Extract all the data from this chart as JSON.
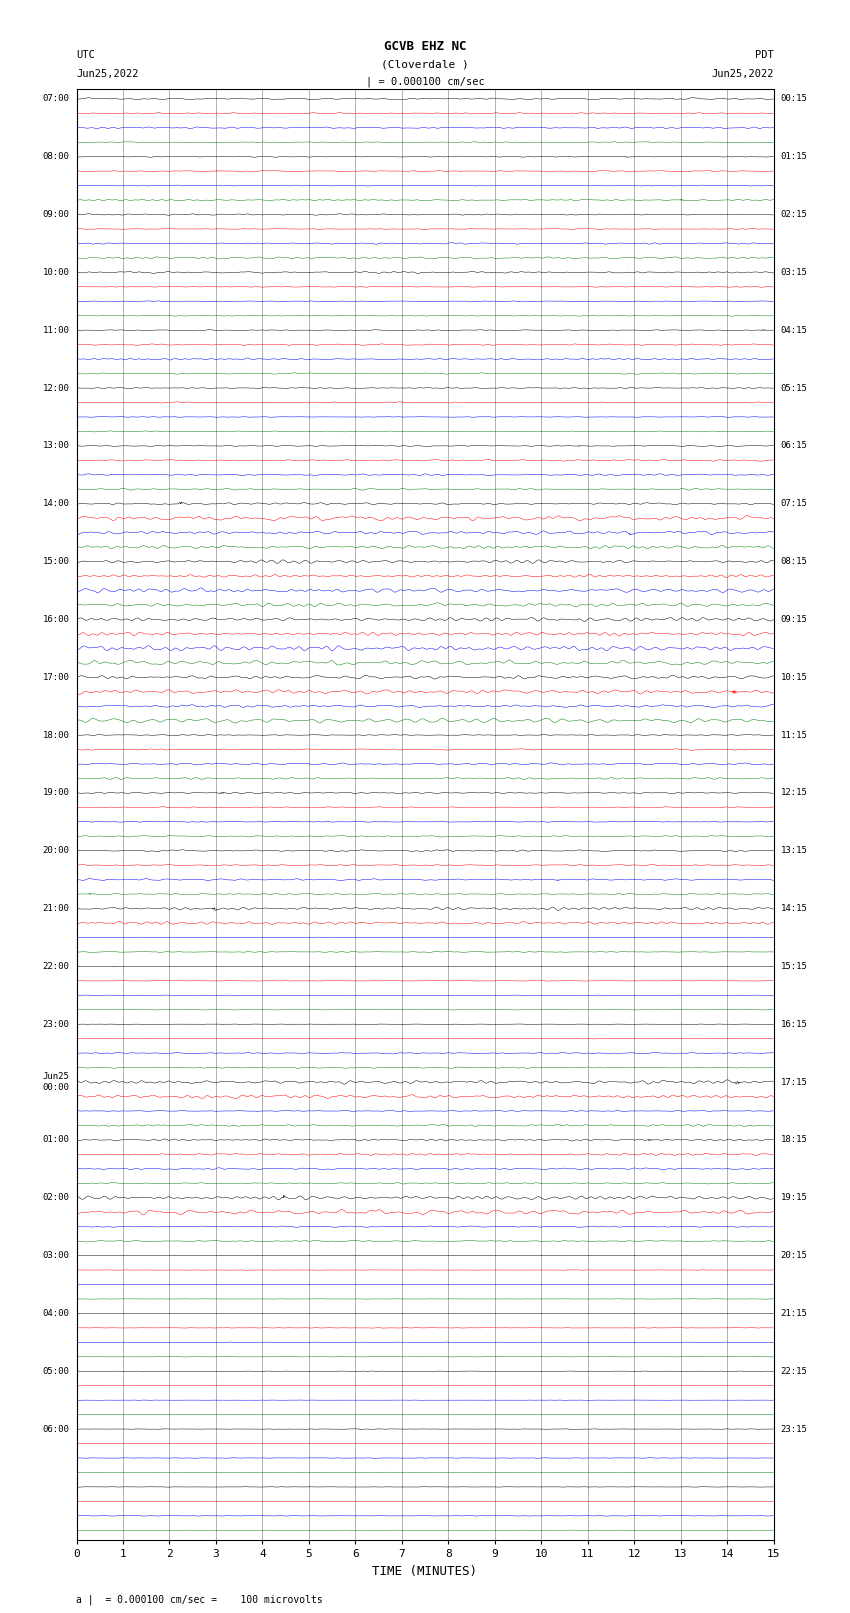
{
  "title_line1": "GCVB EHZ NC",
  "title_line2": "(Cloverdale )",
  "scale_label": "| = 0.000100 cm/sec",
  "utc_label": "UTC\nJun25,2022",
  "pdt_label": "PDT\nJun25,2022",
  "bottom_label": "a |  = 0.000100 cm/sec =    100 microvolts",
  "xlabel": "TIME (MINUTES)",
  "num_traces": 100,
  "x_min": 0,
  "x_max": 15,
  "x_ticks": [
    0,
    1,
    2,
    3,
    4,
    5,
    6,
    7,
    8,
    9,
    10,
    11,
    12,
    13,
    14,
    15
  ],
  "fig_width": 8.5,
  "fig_height": 16.13,
  "bg_color": "#ffffff",
  "trace_colors": [
    "black",
    "red",
    "blue",
    "green"
  ],
  "grid_color": "#888888",
  "left_label_utc_times": [
    "07:00",
    "",
    "",
    "",
    "08:00",
    "",
    "",
    "",
    "09:00",
    "",
    "",
    "",
    "10:00",
    "",
    "",
    "",
    "11:00",
    "",
    "",
    "",
    "12:00",
    "",
    "",
    "",
    "13:00",
    "",
    "",
    "",
    "14:00",
    "",
    "",
    "",
    "15:00",
    "",
    "",
    "",
    "16:00",
    "",
    "",
    "",
    "17:00",
    "",
    "",
    "",
    "18:00",
    "",
    "",
    "",
    "19:00",
    "",
    "",
    "",
    "20:00",
    "",
    "",
    "",
    "21:00",
    "",
    "",
    "",
    "22:00",
    "",
    "",
    "",
    "23:00",
    "",
    "",
    "",
    "Jun25\n00:00",
    "",
    "",
    "",
    "01:00",
    "",
    "",
    "",
    "02:00",
    "",
    "",
    "",
    "03:00",
    "",
    "",
    "",
    "04:00",
    "",
    "",
    "",
    "05:00",
    "",
    "",
    "",
    "06:00",
    "",
    ""
  ],
  "right_label_pdt_times": [
    "00:15",
    "",
    "",
    "",
    "01:15",
    "",
    "",
    "",
    "02:15",
    "",
    "",
    "",
    "03:15",
    "",
    "",
    "",
    "04:15",
    "",
    "",
    "",
    "05:15",
    "",
    "",
    "",
    "06:15",
    "",
    "",
    "",
    "07:15",
    "",
    "",
    "",
    "08:15",
    "",
    "",
    "",
    "09:15",
    "",
    "",
    "",
    "10:15",
    "",
    "",
    "",
    "11:15",
    "",
    "",
    "",
    "12:15",
    "",
    "",
    "",
    "13:15",
    "",
    "",
    "",
    "14:15",
    "",
    "",
    "",
    "15:15",
    "",
    "",
    "",
    "16:15",
    "",
    "",
    "",
    "17:15",
    "",
    "",
    "",
    "18:15",
    "",
    "",
    "",
    "19:15",
    "",
    "",
    "",
    "20:15",
    "",
    "",
    "",
    "21:15",
    "",
    "",
    "",
    "22:15",
    "",
    "",
    "",
    "23:15",
    "",
    ""
  ],
  "high_amplitude_traces": [
    28,
    29,
    30,
    31,
    32,
    33,
    34,
    35,
    36,
    37,
    38,
    39,
    40,
    41,
    42,
    43,
    56,
    57,
    68,
    69,
    76,
    77
  ],
  "flat_traces": [
    60,
    61,
    62,
    63,
    64,
    65,
    80,
    81,
    82,
    83,
    84,
    85,
    86,
    87,
    88,
    89,
    90,
    91,
    92,
    93,
    94,
    95,
    96,
    97,
    98,
    99
  ]
}
